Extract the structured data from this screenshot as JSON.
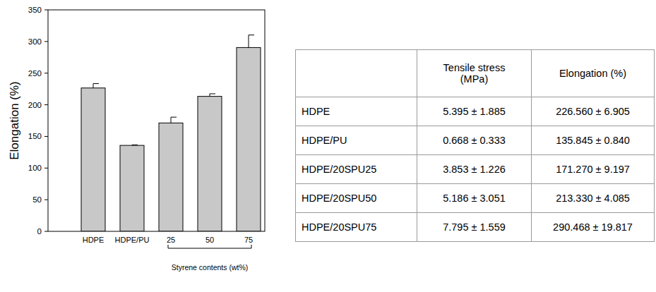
{
  "chart_data": {
    "type": "bar",
    "y_label": "Elongation (%)",
    "categories": [
      "HDPE",
      "HDPE/PU",
      "25",
      "50",
      "75"
    ],
    "values": [
      226.56,
      135.845,
      171.27,
      213.33,
      290.468
    ],
    "errors": [
      6.905,
      0.84,
      9.197,
      4.085,
      19.817
    ],
    "color": "#c8c8c8",
    "ylim": [
      0,
      350
    ],
    "yticks": [
      0,
      50,
      100,
      150,
      200,
      250,
      300,
      350
    ],
    "grid": false,
    "annotations": [
      {
        "text": "Styrene contents (wt%)",
        "from": "25",
        "to": "75"
      }
    ]
  },
  "table": {
    "header": [
      null,
      [
        "Tensile stress",
        "(MPa)"
      ],
      "Elongation (%)"
    ],
    "rows": [
      [
        "HDPE",
        "5.395 ± 1.885",
        "226.560 ± 6.905"
      ],
      [
        "HDPE/PU",
        "0.668 ± 0.333",
        "135.845 ± 0.840"
      ],
      [
        "HDPE/20SPU25",
        "3.853 ± 1.226",
        "171.270 ± 9.197"
      ],
      [
        "HDPE/20SPU50",
        "5.186 ± 3.051",
        "213.330 ± 4.085"
      ],
      [
        "HDPE/20SPU75",
        "7.795 ± 1.559",
        "290.468 ± 19.817"
      ]
    ]
  }
}
